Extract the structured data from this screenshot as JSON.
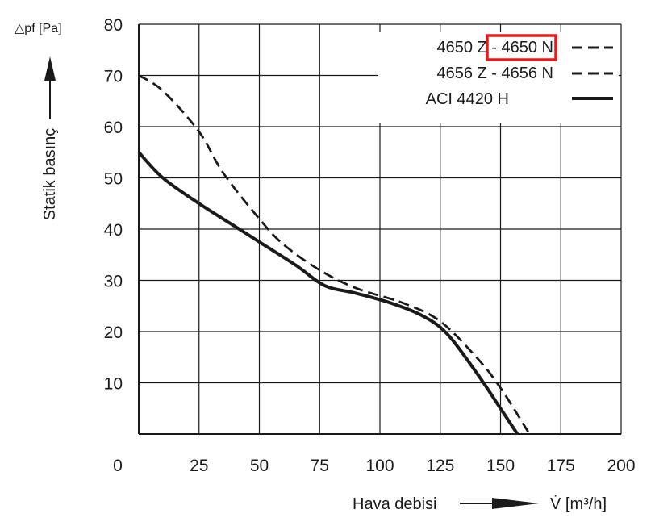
{
  "chart_data": {
    "type": "line",
    "xlabel": "Hava debisi",
    "xunit": "V̇ [m³/h]",
    "ylabel": "Statik basınç",
    "yunit": "△pf [Pa]",
    "xlim": [
      0,
      200
    ],
    "ylim": [
      0,
      80
    ],
    "xticks": [
      "0",
      "25",
      "50",
      "75",
      "100",
      "125",
      "150",
      "175",
      "200"
    ],
    "yticks": [
      "10",
      "20",
      "30",
      "40",
      "50",
      "60",
      "70",
      "80"
    ],
    "grid": true,
    "legend_position": "top-right",
    "highlight": {
      "text": "4650 N",
      "color": "#e31b1b"
    },
    "series": [
      {
        "name": "4650 Z - 4650 N",
        "style": "dashed",
        "x": [
          0,
          10,
          25,
          35,
          50,
          60,
          75,
          90,
          110,
          125,
          140,
          150,
          162
        ],
        "y": [
          70,
          67,
          59,
          51,
          42,
          37,
          32,
          28.5,
          25.5,
          22,
          15,
          9,
          0
        ]
      },
      {
        "name": "4656 Z - 4656 N",
        "style": "dashed",
        "x": [
          0,
          10,
          25,
          35,
          50,
          60,
          75,
          90,
          110,
          125,
          140,
          150,
          162
        ],
        "y": [
          70,
          67,
          59,
          51,
          42,
          37,
          32,
          28.5,
          25.5,
          22,
          15,
          9,
          0
        ]
      },
      {
        "name": "ACI 4420 H",
        "style": "solid",
        "x": [
          0,
          10,
          25,
          40,
          50,
          65,
          77,
          90,
          105,
          118,
          128,
          140,
          150,
          157
        ],
        "y": [
          55,
          50,
          45,
          40.5,
          37.5,
          33,
          29,
          27.5,
          25.5,
          23,
          19.5,
          12,
          5,
          0
        ]
      }
    ]
  }
}
